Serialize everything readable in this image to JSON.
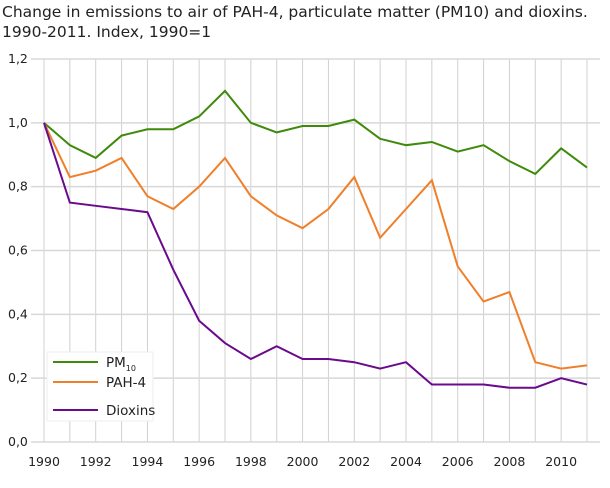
{
  "chart_data": {
    "type": "line",
    "title": "Change in emissions to air of PAH-4, particulate matter (PM10) and dioxins.",
    "subtitle": "1990-2011. Index, 1990=1",
    "xlabel": "",
    "ylabel": "",
    "x": [
      1990,
      1991,
      1992,
      1993,
      1994,
      1995,
      1996,
      1997,
      1998,
      1999,
      2000,
      2001,
      2002,
      2003,
      2004,
      2005,
      2006,
      2007,
      2008,
      2009,
      2010,
      2011
    ],
    "x_ticks": [
      "1990",
      "1992",
      "1994",
      "1996",
      "1998",
      "2000",
      "2002",
      "2004",
      "2006",
      "2008",
      "2010"
    ],
    "y_ticks": [
      "0,0",
      "0,2",
      "0,4",
      "0,6",
      "0,8",
      "1,0",
      "1,2"
    ],
    "ylim": [
      0,
      1.2
    ],
    "grid": true,
    "legend_position": "bottom-left",
    "series": [
      {
        "name": "PM10",
        "name_main": "PM",
        "name_sub": "10",
        "color": "#3f8a0a",
        "values": [
          1.0,
          0.93,
          0.89,
          0.96,
          0.98,
          0.98,
          1.02,
          1.1,
          1.0,
          0.97,
          0.99,
          0.99,
          1.01,
          0.95,
          0.93,
          0.94,
          0.91,
          0.93,
          0.88,
          0.84,
          0.92,
          0.86
        ]
      },
      {
        "name": "PAH-4",
        "color": "#f07f2a",
        "values": [
          1.0,
          0.83,
          0.85,
          0.89,
          0.77,
          0.73,
          0.8,
          0.89,
          0.77,
          0.71,
          0.67,
          0.73,
          0.83,
          0.64,
          0.73,
          0.82,
          0.55,
          0.44,
          0.47,
          0.25,
          0.23,
          0.24
        ]
      },
      {
        "name": "Dioxins",
        "color": "#6a0a8c",
        "values": [
          1.0,
          0.75,
          0.74,
          0.73,
          0.72,
          0.54,
          0.38,
          0.31,
          0.26,
          0.3,
          0.26,
          0.26,
          0.25,
          0.23,
          0.25,
          0.18,
          0.18,
          0.18,
          0.17,
          0.17,
          0.2,
          0.18
        ]
      }
    ]
  }
}
